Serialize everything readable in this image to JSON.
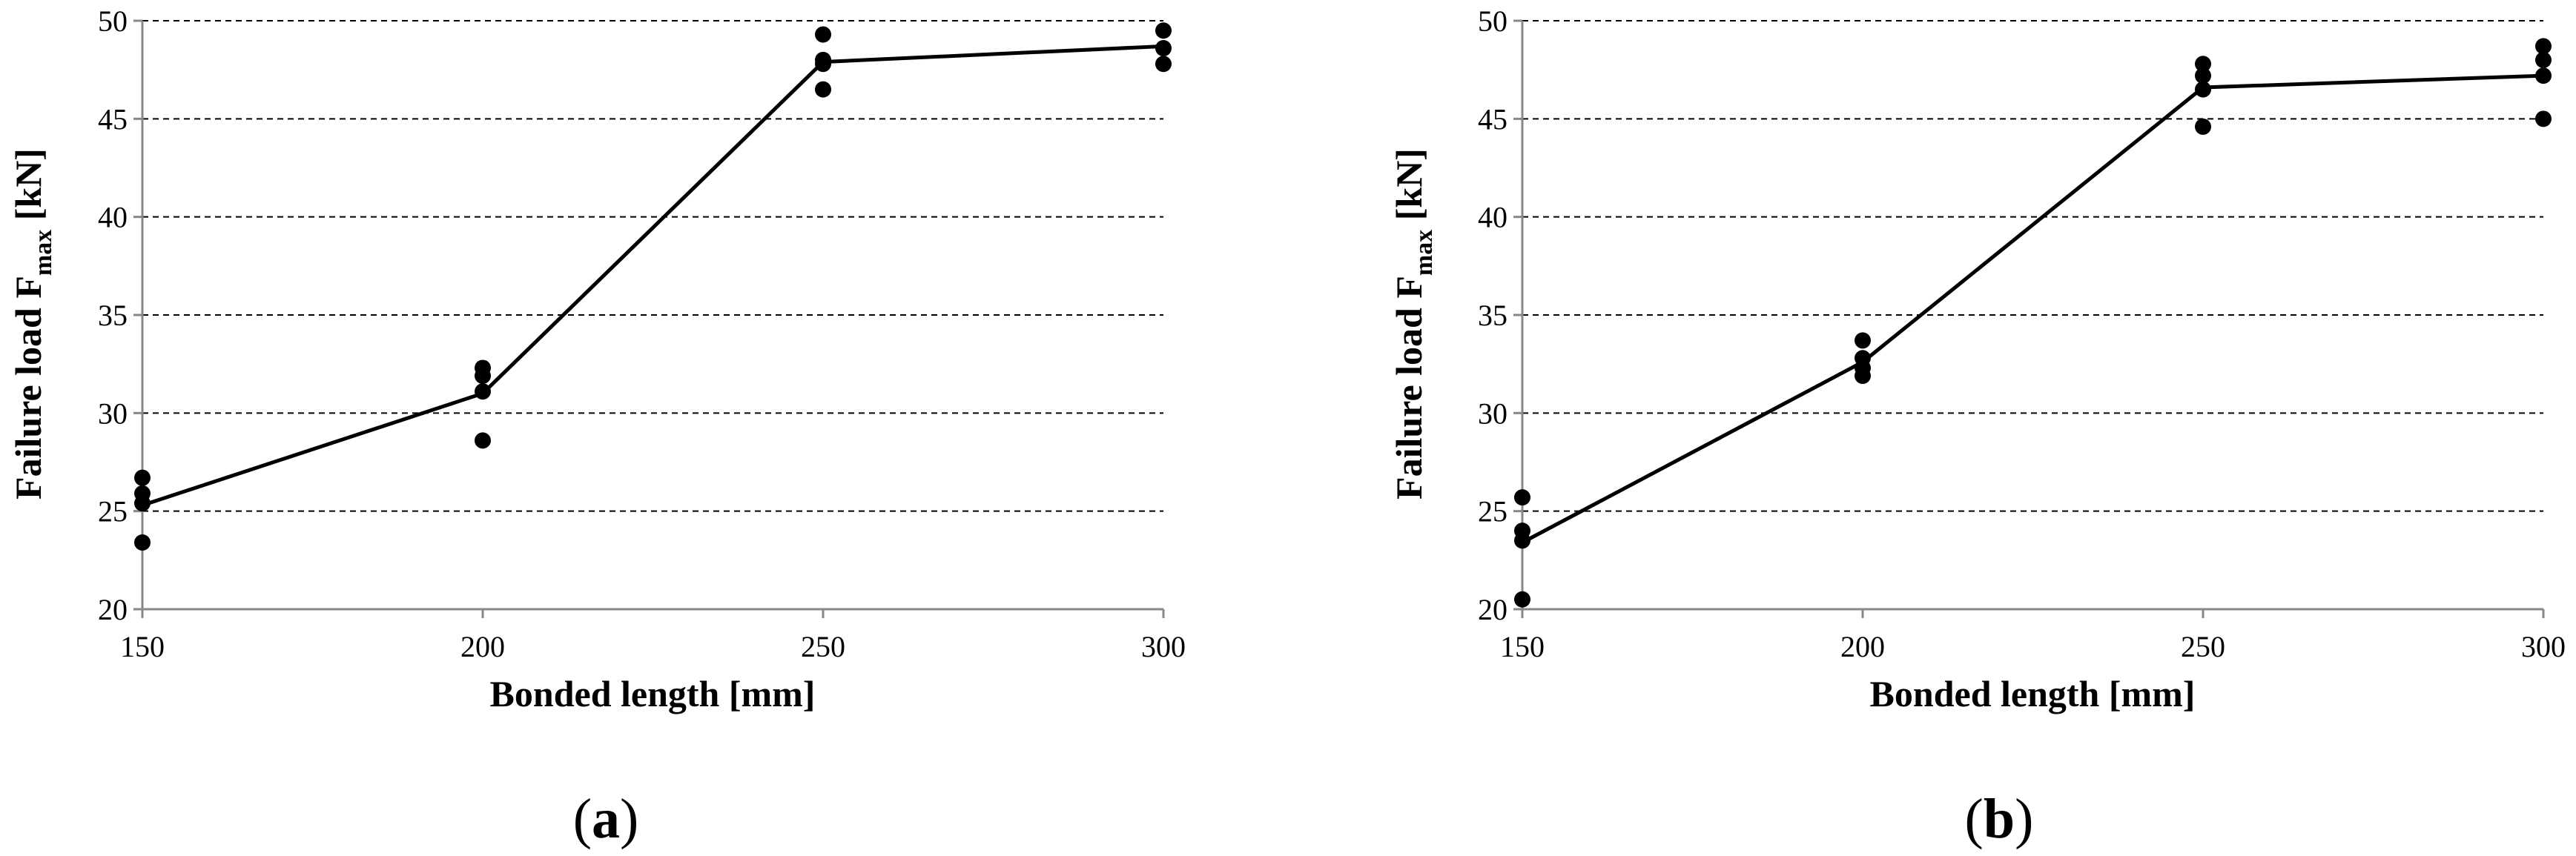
{
  "chart_data": [
    {
      "type": "scatter",
      "panel_label": "a",
      "xlabel": "Bonded length [mm]",
      "ylabel_main": "Failure load  F",
      "ylabel_sub": "max",
      "ylabel_unit": " [kN]",
      "xlim": [
        150,
        300
      ],
      "ylim": [
        20,
        50
      ],
      "xticks": [
        150,
        200,
        250,
        300
      ],
      "yticks": [
        20,
        25,
        30,
        35,
        40,
        45,
        50
      ],
      "grid": "horizontal dashed",
      "points": [
        {
          "x": 150,
          "y": 26.7
        },
        {
          "x": 150,
          "y": 25.9
        },
        {
          "x": 150,
          "y": 25.4
        },
        {
          "x": 150,
          "y": 23.4
        },
        {
          "x": 200,
          "y": 32.3
        },
        {
          "x": 200,
          "y": 31.9
        },
        {
          "x": 200,
          "y": 31.1
        },
        {
          "x": 200,
          "y": 28.6
        },
        {
          "x": 250,
          "y": 49.3
        },
        {
          "x": 250,
          "y": 48.0
        },
        {
          "x": 250,
          "y": 47.8
        },
        {
          "x": 250,
          "y": 46.5
        },
        {
          "x": 300,
          "y": 49.5
        },
        {
          "x": 300,
          "y": 48.6
        },
        {
          "x": 300,
          "y": 47.8
        }
      ],
      "line": {
        "x": [
          150,
          200,
          250,
          300
        ],
        "y": [
          25.3,
          31.0,
          47.9,
          48.7
        ]
      }
    },
    {
      "type": "scatter",
      "panel_label": "b",
      "xlabel": "Bonded length [mm]",
      "ylabel_main": "Failure load  F",
      "ylabel_sub": "max",
      "ylabel_unit": " [kN]",
      "xlim": [
        150,
        300
      ],
      "ylim": [
        20,
        50
      ],
      "xticks": [
        150,
        200,
        250,
        300
      ],
      "yticks": [
        20,
        25,
        30,
        35,
        40,
        45,
        50
      ],
      "grid": "horizontal dashed",
      "points": [
        {
          "x": 150,
          "y": 25.7
        },
        {
          "x": 150,
          "y": 24.0
        },
        {
          "x": 150,
          "y": 23.5
        },
        {
          "x": 150,
          "y": 20.5
        },
        {
          "x": 200,
          "y": 33.7
        },
        {
          "x": 200,
          "y": 32.8
        },
        {
          "x": 200,
          "y": 32.3
        },
        {
          "x": 200,
          "y": 31.9
        },
        {
          "x": 250,
          "y": 47.8
        },
        {
          "x": 250,
          "y": 47.2
        },
        {
          "x": 250,
          "y": 46.5
        },
        {
          "x": 250,
          "y": 44.6
        },
        {
          "x": 300,
          "y": 48.7
        },
        {
          "x": 300,
          "y": 48.0
        },
        {
          "x": 300,
          "y": 47.2
        },
        {
          "x": 300,
          "y": 45.0
        }
      ],
      "line": {
        "x": [
          150,
          200,
          250,
          300
        ],
        "y": [
          23.4,
          32.6,
          46.6,
          47.2
        ]
      }
    }
  ]
}
